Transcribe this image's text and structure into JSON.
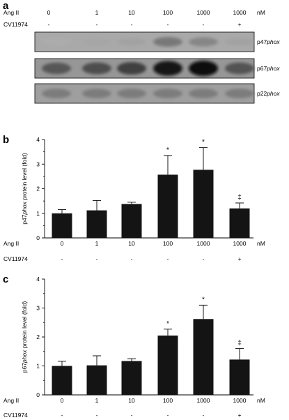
{
  "panel_a": {
    "letter": "a",
    "header_rows": [
      {
        "label": "Ang II",
        "values": [
          "0",
          "1",
          "10",
          "100",
          "1000",
          "1000"
        ],
        "unit": "nM"
      },
      {
        "label": "CV11974",
        "values": [
          "-",
          "-",
          "-",
          "-",
          "-",
          "+"
        ],
        "unit": ""
      }
    ],
    "blots": [
      {
        "name": "p47",
        "suffix": "phox",
        "intensity": [
          0.15,
          0.18,
          0.2,
          0.42,
          0.35,
          0.2
        ]
      },
      {
        "name": "p67",
        "suffix": "phox",
        "intensity": [
          0.6,
          0.65,
          0.72,
          0.95,
          1.0,
          0.62
        ]
      },
      {
        "name": "p22",
        "suffix": "phox",
        "intensity": [
          0.4,
          0.4,
          0.4,
          0.4,
          0.4,
          0.4
        ]
      }
    ]
  },
  "chart_data": [
    {
      "panel": "b",
      "type": "bar",
      "categories": [
        "0",
        "1",
        "10",
        "100",
        "1000",
        "1000"
      ],
      "values": [
        1.0,
        1.12,
        1.38,
        2.57,
        2.77,
        1.2
      ],
      "errors": [
        0.15,
        0.4,
        0.07,
        0.78,
        0.9,
        0.22
      ],
      "annotations": [
        "",
        "",
        "",
        "*",
        "*",
        "‡"
      ],
      "ylabel_prefix": "p47",
      "ylabel_italic": "phox",
      "ylabel_suffix": " protein level (fold)",
      "ylim": [
        0,
        4
      ],
      "yticks": [
        "0",
        "1",
        "2",
        "3",
        "4"
      ],
      "row_labels": [
        {
          "label": "Ang II",
          "values": [
            "0",
            "1",
            "10",
            "100",
            "1000",
            "1000"
          ],
          "unit": "nM"
        },
        {
          "label": "CV11974",
          "values": [
            "-",
            "-",
            "-",
            "-",
            "-",
            "+"
          ],
          "unit": ""
        }
      ]
    },
    {
      "panel": "c",
      "type": "bar",
      "categories": [
        "0",
        "1",
        "10",
        "100",
        "1000",
        "1000"
      ],
      "values": [
        1.0,
        1.02,
        1.17,
        2.05,
        2.62,
        1.22
      ],
      "errors": [
        0.16,
        0.33,
        0.08,
        0.22,
        0.48,
        0.38
      ],
      "annotations": [
        "",
        "",
        "",
        "*",
        "*",
        "‡"
      ],
      "ylabel_prefix": "p67",
      "ylabel_italic": "phox",
      "ylabel_suffix": " protein level (fold)",
      "ylim": [
        0,
        4
      ],
      "yticks": [
        "0",
        "1",
        "2",
        "3",
        "4"
      ],
      "row_labels": [
        {
          "label": "Ang II",
          "values": [
            "0",
            "1",
            "10",
            "100",
            "1000",
            "1000"
          ],
          "unit": "nM"
        },
        {
          "label": "CV11974",
          "values": [
            "-",
            "-",
            "-",
            "-",
            "-",
            "+"
          ],
          "unit": ""
        }
      ]
    }
  ]
}
